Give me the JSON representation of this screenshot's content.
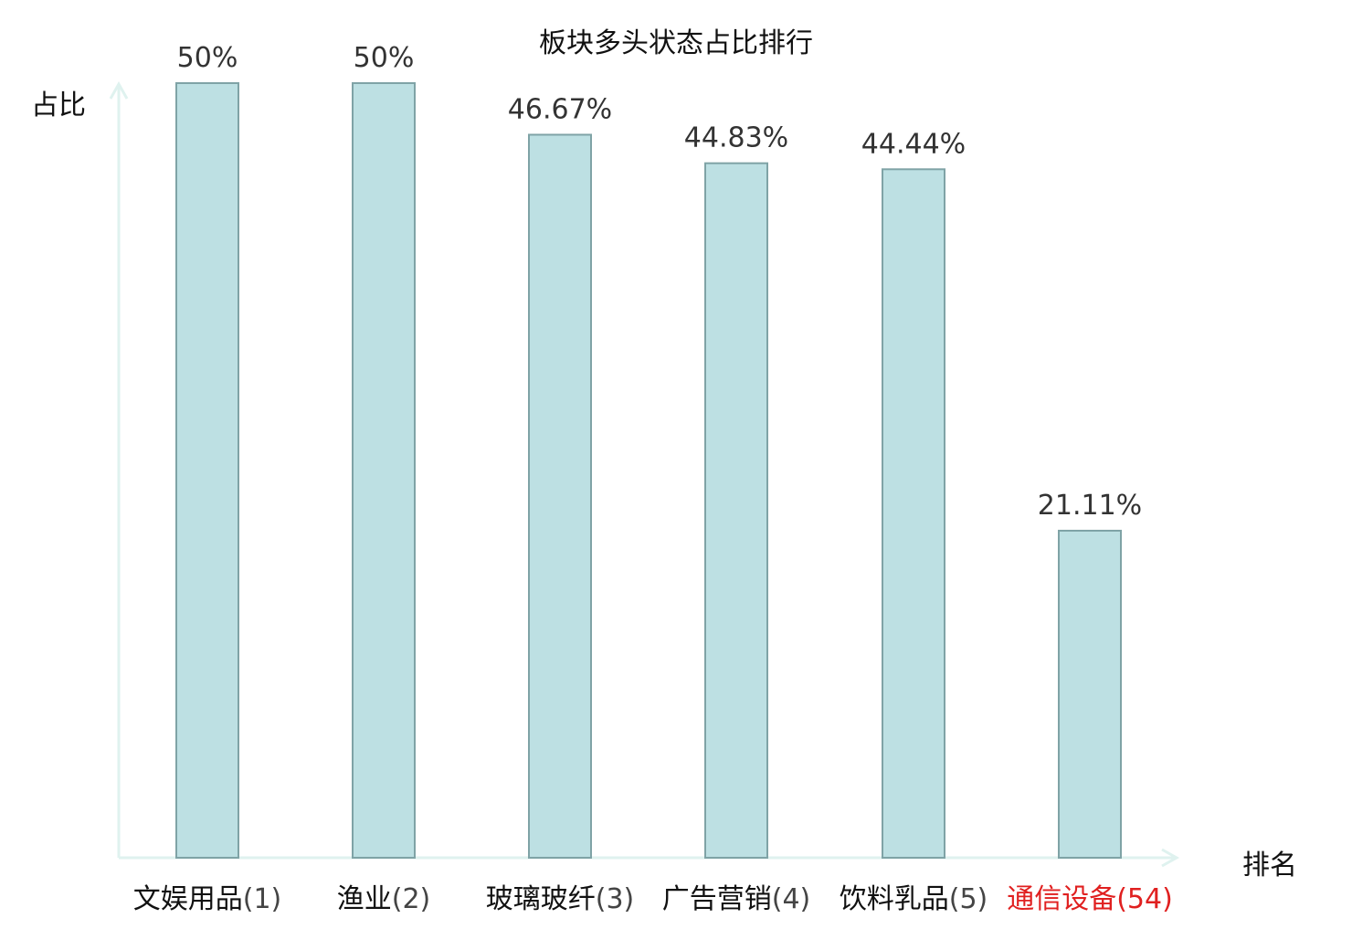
{
  "chart_data": {
    "type": "bar",
    "title": "板块多头状态占比排行",
    "ylabel": "占比",
    "xlabel": "排名",
    "ylim": [
      0,
      50
    ],
    "grid": false,
    "categories": [
      "文娱用品",
      "渔业",
      "玻璃玻纤",
      "广告营销",
      "饮料乳品",
      "通信设备"
    ],
    "ranks": [
      "(1)",
      "(2)",
      "(3)",
      "(4)",
      "(5)",
      "(54)"
    ],
    "values": [
      50,
      50,
      46.67,
      44.83,
      44.44,
      21.11
    ],
    "value_labels": [
      "50%",
      "50%",
      "46.67%",
      "44.83%",
      "44.44%",
      "21.11%"
    ],
    "highlight_index": 5,
    "colors": {
      "bar_fill": "#bde0e3",
      "bar_stroke": "#7fa3a6",
      "axis": "#dff2ef",
      "value_text": "#333333",
      "category_text": "#111111",
      "rank_text": "#444444",
      "highlight": "#e02020"
    }
  }
}
